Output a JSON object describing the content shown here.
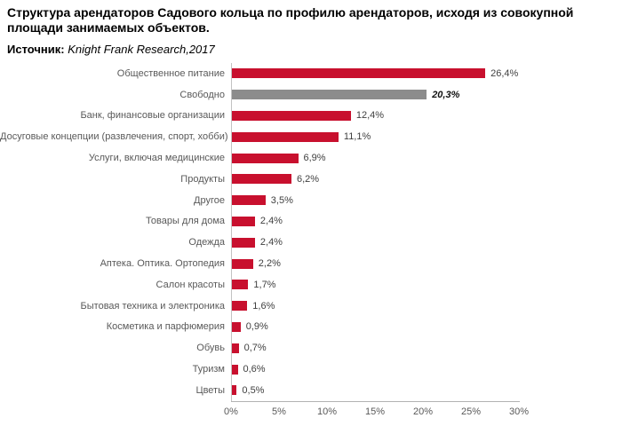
{
  "page": {
    "title": "Структура арендаторов Садового кольца по профилю арендаторов, исходя из совокупной площади занимаемых объектов.",
    "source_label": "Источник:",
    "source_value": "Knight Frank Research,2017"
  },
  "colors": {
    "bar": "#C8102E",
    "free_bar": "#8C8C8C",
    "axis": "#B2B2B2",
    "category_text": "#595959",
    "value_text": "#3F3F3F"
  },
  "chart_data": {
    "type": "bar",
    "orientation": "horizontal",
    "title": "Структура арендаторов Садового кольца по профилю арендаторов, исходя из совокупной площади занимаемых объектов.",
    "xlabel": "",
    "ylabel": "",
    "xlim": [
      0,
      30
    ],
    "grid": false,
    "legend": false,
    "x_ticks": [
      "0%",
      "5%",
      "10%",
      "15%",
      "20%",
      "25%",
      "30%"
    ],
    "categories": [
      "Общественное питание",
      "Свободно",
      "Банк, финансовые организации",
      "Досуговые концепции (развлечения, спорт, хобби)",
      "Услуги, включая медицинские",
      "Продукты",
      "Другое",
      "Товары для дома",
      "Одежда",
      "Аптека. Оптика. Ортопедия",
      "Салон красоты",
      "Бытовая техника и электроника",
      "Косметика и парфюмерия",
      "Обувь",
      "Туризм",
      "Цветы"
    ],
    "values": [
      26.4,
      20.3,
      12.4,
      11.1,
      6.9,
      6.2,
      3.5,
      2.4,
      2.4,
      2.2,
      1.7,
      1.6,
      0.9,
      0.7,
      0.6,
      0.5
    ],
    "value_labels": [
      "26,4%",
      "20,3%",
      "12,4%",
      "11,1%",
      "6,9%",
      "6,2%",
      "3,5%",
      "2,4%",
      "2,4%",
      "2,2%",
      "1,7%",
      "1,6%",
      "0,9%",
      "0,7%",
      "0,6%",
      "0,5%"
    ],
    "highlight_index": 1
  }
}
